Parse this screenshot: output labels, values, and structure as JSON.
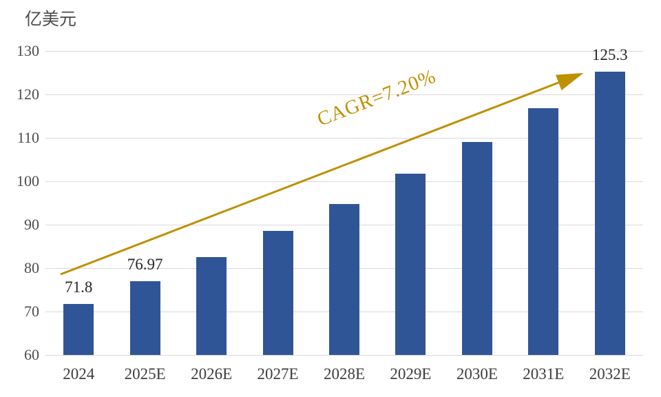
{
  "chart_data": {
    "type": "bar",
    "title": "",
    "unit_label": "亿美元",
    "categories": [
      "2024",
      "2025E",
      "2026E",
      "2027E",
      "2028E",
      "2029E",
      "2030E",
      "2031E",
      "2032E"
    ],
    "values": [
      71.8,
      76.97,
      82.5,
      88.5,
      94.8,
      101.7,
      109.0,
      116.8,
      125.3
    ],
    "bar_labels": [
      "71.8",
      "76.97",
      "",
      "",
      "",
      "",
      "",
      "",
      "125.3"
    ],
    "annotation": "CAGR=7.20%",
    "xlabel": "",
    "ylabel": "亿美元",
    "ylim": [
      60,
      130
    ],
    "yticks": [
      60,
      70,
      80,
      90,
      100,
      110,
      120,
      130
    ],
    "grid": true,
    "legend": "none",
    "colors": {
      "bar": "#2F5597",
      "accent": "#BF9000",
      "gridline": "#D9D9D9",
      "tick_text": "#4D4D4D",
      "data_label_text": "#262626"
    }
  }
}
